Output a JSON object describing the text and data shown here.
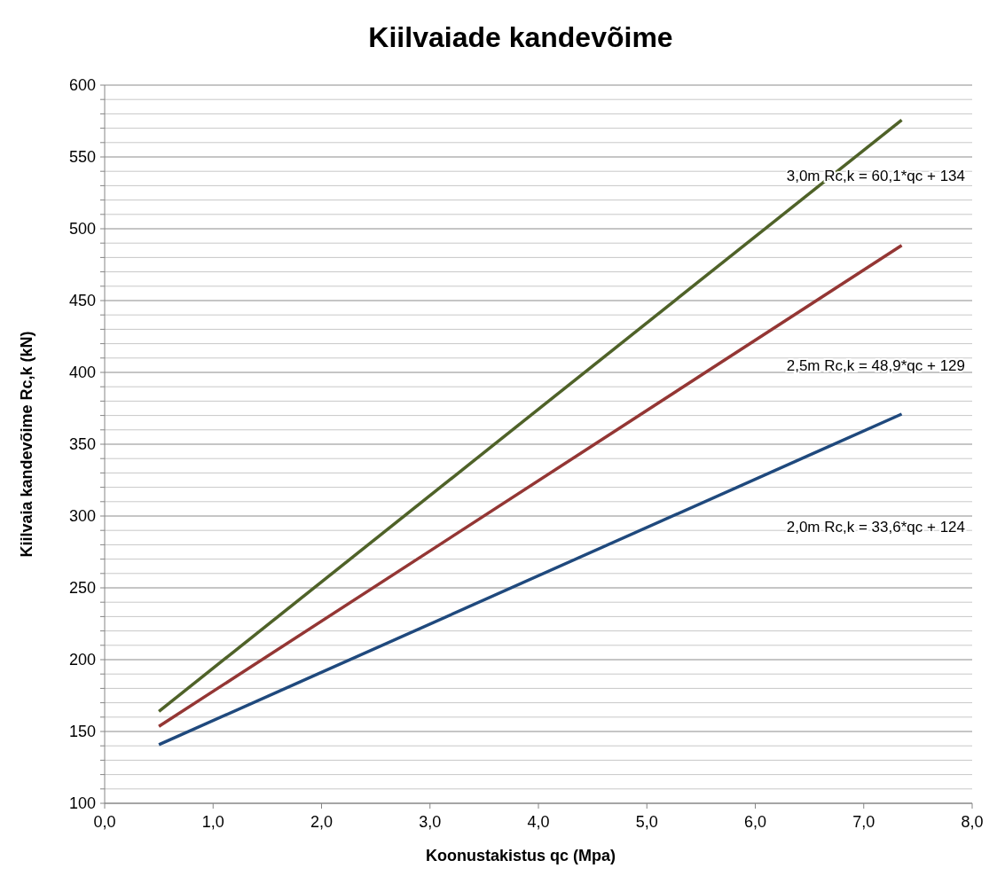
{
  "chart_data": {
    "type": "line",
    "title": "Kiilvaiade kandevõime",
    "xlabel": "Koonustakistus qc (Mpa)",
    "ylabel": "Kiilvaia kandevõime Rc,k (kN)",
    "series": [
      {
        "color": "#1f497d",
        "values": [
          140.8,
          371
        ]
      },
      {
        "color": "#943634",
        "values": [
          153.5,
          488.4
        ]
      },
      {
        "color": "#4f6228",
        "values": [
          164,
          575.7
        ]
      }
    ],
    "x": [
      0.5,
      7.35
    ],
    "xlim": [
      0,
      8
    ],
    "xticks": [
      {
        "value": 0,
        "label": "0,0"
      },
      {
        "value": 1,
        "label": "1,0"
      },
      {
        "value": 2,
        "label": "2,0"
      },
      {
        "value": 3,
        "label": "3,0"
      },
      {
        "value": 4,
        "label": "4,0"
      },
      {
        "value": 5,
        "label": "5,0"
      },
      {
        "value": 6,
        "label": "6,0"
      },
      {
        "value": 7,
        "label": "7,0"
      },
      {
        "value": 8,
        "label": "8,0"
      }
    ],
    "ylim": [
      100,
      600
    ],
    "yticks": [
      100,
      {
        "value": 110,
        "label": null
      },
      {
        "value": 120,
        "label": null
      },
      {
        "value": 130,
        "label": null
      },
      {
        "value": 140,
        "label": null
      },
      150,
      {
        "value": 160,
        "label": null
      },
      {
        "value": 170,
        "label": null
      },
      {
        "value": 180,
        "label": null
      },
      {
        "value": 190,
        "label": null
      },
      200,
      {
        "value": 210,
        "label": null
      },
      {
        "value": 220,
        "label": null
      },
      {
        "value": 230,
        "label": null
      },
      {
        "value": 240,
        "label": null
      },
      250,
      {
        "value": 260,
        "label": null
      },
      {
        "value": 270,
        "label": null
      },
      {
        "value": 280,
        "label": null
      },
      {
        "value": 290,
        "label": null
      },
      300,
      {
        "value": 310,
        "label": null
      },
      {
        "value": 320,
        "label": null
      },
      {
        "value": 330,
        "label": null
      },
      {
        "value": 340,
        "label": null
      },
      350,
      {
        "value": 360,
        "label": null
      },
      {
        "value": 370,
        "label": null
      },
      {
        "value": 380,
        "label": null
      },
      {
        "value": 390,
        "label": null
      },
      400,
      {
        "value": 410,
        "label": null
      },
      {
        "value": 420,
        "label": null
      },
      {
        "value": 430,
        "label": null
      },
      {
        "value": 440,
        "label": null
      },
      450,
      {
        "value": 460,
        "label": null
      },
      {
        "value": 470,
        "label": null
      },
      {
        "value": 480,
        "label": null
      },
      {
        "value": 490,
        "label": null
      },
      500,
      {
        "value": 510,
        "label": null
      },
      {
        "value": 520,
        "label": null
      },
      {
        "value": 530,
        "label": null
      },
      {
        "value": 540,
        "label": null
      },
      550,
      {
        "value": 560,
        "label": null
      },
      {
        "value": 570,
        "label": null
      },
      {
        "value": 580,
        "label": null
      },
      {
        "value": 590,
        "label": null
      },
      600
    ],
    "grid": "y",
    "marker": "none",
    "line_style": "solid",
    "annotations": [
      "3,0m Rc,k = 60,1*qc + 134",
      "2,5m Rc,k = 48,9*qc + 129",
      "2,0m Rc,k = 33,6*qc + 124"
    ]
  }
}
